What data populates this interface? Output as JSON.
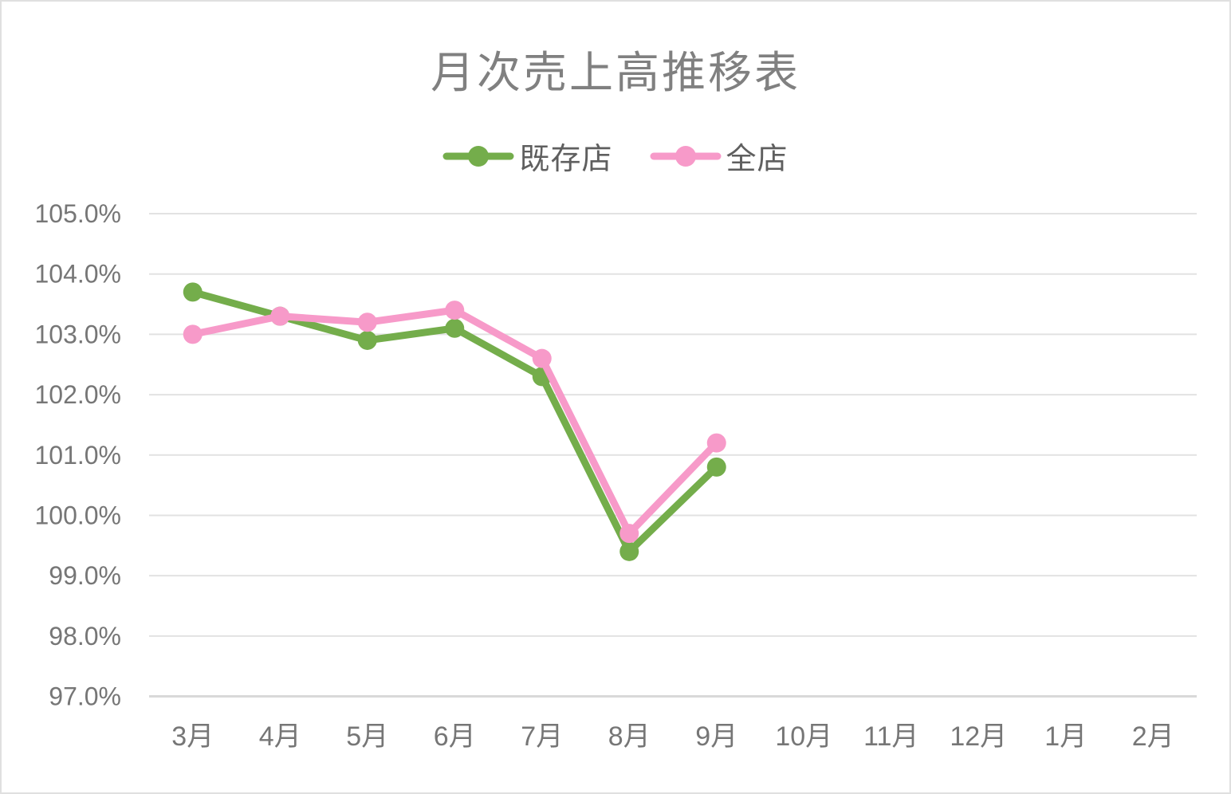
{
  "chart_data": {
    "type": "line",
    "title": "月次売上高推移表",
    "categories": [
      "3月",
      "4月",
      "5月",
      "6月",
      "7月",
      "8月",
      "9月",
      "10月",
      "11月",
      "12月",
      "1月",
      "2月"
    ],
    "series": [
      {
        "name": "既存店",
        "color": "#74AD4B",
        "values": [
          103.7,
          103.3,
          102.9,
          103.1,
          102.3,
          99.4,
          100.8
        ]
      },
      {
        "name": "全店",
        "color": "#F79AC9",
        "values": [
          103.0,
          103.3,
          103.2,
          103.4,
          102.6,
          99.7,
          101.2
        ]
      }
    ],
    "y_axis": {
      "min": 97,
      "max": 105,
      "step": 1,
      "tick_labels": [
        "105.0%",
        "104.0%",
        "103.0%",
        "102.0%",
        "101.0%",
        "100.0%",
        "99.0%",
        "98.0%",
        "97.0%"
      ]
    },
    "xlabel": "",
    "ylabel": "",
    "grid": true,
    "legend_position": "top",
    "colors": {
      "title_text": "#808080",
      "legend_text": "#5F5F5F",
      "axis_text": "#767676",
      "gridline": "#E2E2E2",
      "axis_line": "#D9D9D9"
    }
  }
}
